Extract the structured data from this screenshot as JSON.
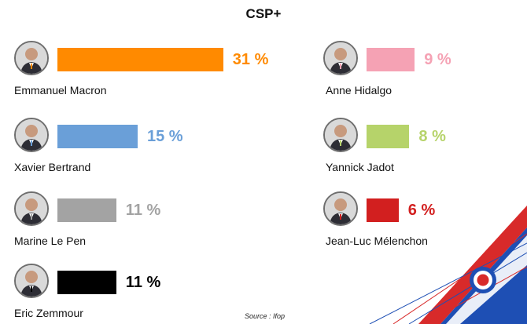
{
  "chart_data": {
    "type": "bar",
    "title": "CSP+",
    "unit": "%",
    "candidates": [
      {
        "name": "Emmanuel Macron",
        "value": 31,
        "label": "31 %",
        "color": "#ff8a00",
        "text_color": "#ff8a00"
      },
      {
        "name": "Xavier Bertrand",
        "value": 15,
        "label": "15 %",
        "color": "#6a9fd8",
        "text_color": "#6a9fd8"
      },
      {
        "name": "Marine Le Pen",
        "value": 11,
        "label": "11 %",
        "color": "#a3a3a3",
        "text_color": "#a3a3a3"
      },
      {
        "name": "Eric Zemmour",
        "value": 11,
        "label": "11 %",
        "color": "#000000",
        "text_color": "#000000"
      },
      {
        "name": "Anne Hidalgo",
        "value": 9,
        "label": "9 %",
        "color": "#f5a2b4",
        "text_color": "#f5a2b4"
      },
      {
        "name": "Yannick Jadot",
        "value": 8,
        "label": "8 %",
        "color": "#b6d36a",
        "text_color": "#b6d36a"
      },
      {
        "name": "Jean-Luc Mélenchon",
        "value": 6,
        "label": "6 %",
        "color": "#d21f1f",
        "text_color": "#d21f1f"
      }
    ]
  },
  "source_label": "Source :  Ifop"
}
